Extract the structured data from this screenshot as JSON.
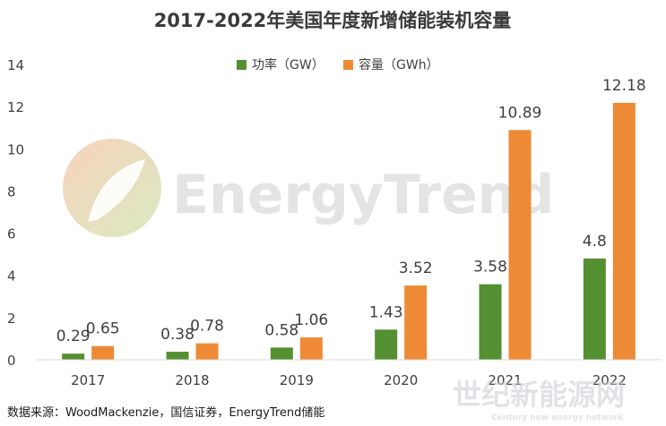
{
  "chart_data": {
    "type": "bar",
    "title": "2017-2022年美国年度新增储能装机容量",
    "categories": [
      "2017",
      "2018",
      "2019",
      "2020",
      "2021",
      "2022"
    ],
    "series": [
      {
        "name": "功率（GW）",
        "color": "#548f32",
        "values": [
          0.29,
          0.38,
          0.58,
          1.43,
          3.58,
          4.8
        ],
        "labels": [
          "0.29",
          "0.38",
          "0.58",
          "1.43",
          "3.58",
          "4.8"
        ]
      },
      {
        "name": "容量（GWh）",
        "color": "#ee8a35",
        "values": [
          0.65,
          0.78,
          1.06,
          3.52,
          10.89,
          12.18
        ],
        "labels": [
          "0.65",
          "0.78",
          "1.06",
          "3.52",
          "10.89",
          "12.18"
        ]
      }
    ],
    "ylim": [
      0,
      14
    ],
    "yticks": [
      "0",
      "2",
      "4",
      "6",
      "8",
      "10",
      "12",
      "14"
    ],
    "grid": false,
    "legend_position": "top-center"
  },
  "source_note": "数据来源：WoodMackenzie，国信证券，EnergyTrend储能",
  "watermarks": {
    "brand": "EnergyTrend",
    "site_cn": "世纪新能源网",
    "site_en": "Century new energy network"
  },
  "colors": {
    "logo_gradient_start": "#f3b08a",
    "logo_gradient_end": "#b9d98e"
  }
}
